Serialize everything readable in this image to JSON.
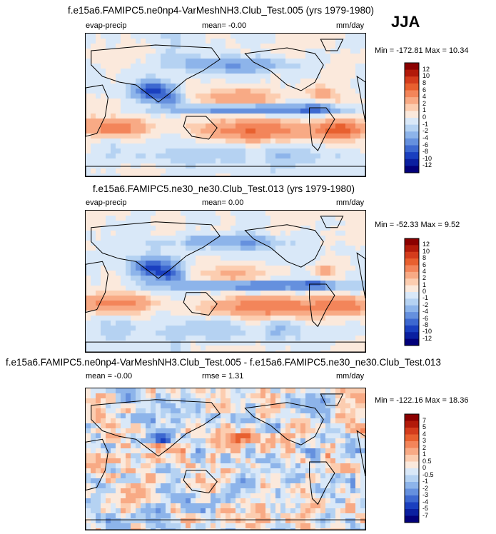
{
  "season": "JJA",
  "panels": [
    {
      "title": "f.e15a6.FAMIPC5.ne0np4-VarMeshNH3.Club_Test.005 (yrs 1979-1980)",
      "left_label": "evap-precip",
      "mean_label": "mean=  -0.00",
      "units": "mm/day",
      "minmax_label": "Min = -172.81 Max =  10.34"
    },
    {
      "title": "f.e15a6.FAMIPC5.ne30_ne30.Club_Test.013 (yrs 1979-1980)",
      "left_label": "evap-precip",
      "mean_label": "mean=  0.00",
      "units": "mm/day",
      "minmax_label": "Min = -52.33 Max =   9.52"
    },
    {
      "title": "f.e15a6.FAMIPC5.ne0np4-VarMeshNH3.Club_Test.005 - f.e15a6.FAMIPC5.ne30_ne30.Club_Test.013",
      "left_label": "mean = -0.00",
      "mean_label": "rmse =   1.31",
      "units": "mm/day",
      "minmax_label": "Min = -122.16 Max =  18.36"
    }
  ],
  "chart_data": [
    {
      "type": "heatmap",
      "title": "f.e15a6.FAMIPC5.ne0np4-VarMeshNH3.Club_Test.005 (yrs 1979-1980)",
      "variable": "evap-precip",
      "units": "mm/day",
      "mean": -0.0,
      "min": -172.81,
      "max": 10.34,
      "colorbar_levels": [
        "12",
        "10",
        "8",
        "6",
        "4",
        "2",
        "1",
        "0",
        "-1",
        "-2",
        "-4",
        "-6",
        "-8",
        "-10",
        "-12"
      ]
    },
    {
      "type": "heatmap",
      "title": "f.e15a6.FAMIPC5.ne30_ne30.Club_Test.013 (yrs 1979-1980)",
      "variable": "evap-precip",
      "units": "mm/day",
      "mean": 0.0,
      "min": -52.33,
      "max": 9.52,
      "colorbar_levels": [
        "12",
        "10",
        "8",
        "6",
        "4",
        "2",
        "1",
        "0",
        "-1",
        "-2",
        "-4",
        "-6",
        "-8",
        "-10",
        "-12"
      ]
    },
    {
      "type": "heatmap",
      "title": "f.e15a6.FAMIPC5.ne0np4-VarMeshNH3.Club_Test.005 - f.e15a6.FAMIPC5.ne30_ne30.Club_Test.013",
      "variable": "difference",
      "units": "mm/day",
      "mean": -0.0,
      "rmse": 1.31,
      "min": -122.16,
      "max": 18.36,
      "colorbar_levels": [
        "7",
        "5",
        "4",
        "3",
        "2",
        "1",
        "0.5",
        "0",
        "-0.5",
        "-1",
        "-2",
        "-3",
        "-4",
        "-5",
        "-7"
      ]
    }
  ],
  "colorbar_colors": [
    "#8b0000",
    "#b21a0a",
    "#d43c1c",
    "#e8602f",
    "#f3855a",
    "#f8aa85",
    "#fccdb0",
    "#fbe9dc",
    "#d9e8f8",
    "#b5d2f2",
    "#8db4ea",
    "#6590de",
    "#3d68d0",
    "#1a3fbf",
    "#0a1fa0",
    "#02007a"
  ]
}
